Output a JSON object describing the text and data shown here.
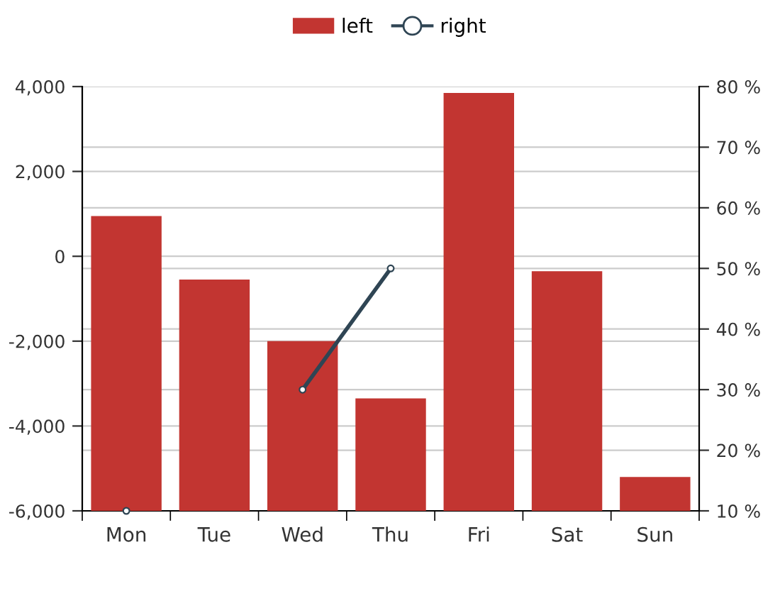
{
  "chart_data": {
    "type": "bar",
    "categories": [
      "Mon",
      "Tue",
      "Wed",
      "Thu",
      "Fri",
      "Sat",
      "Sun"
    ],
    "series": [
      {
        "name": "left",
        "color": "#c23531",
        "base": [
          -6000,
          -6000,
          -6000,
          -6000,
          -6000,
          -6000,
          -6000
        ],
        "values": [
          6950,
          5450,
          4000,
          2650,
          9850,
          5650,
          800
        ]
      },
      {
        "name": "right",
        "type": "line",
        "axis": "y2",
        "color": "#2f4554",
        "marker": "circle",
        "values": [
          10,
          null,
          30,
          50,
          null,
          null,
          null
        ]
      }
    ],
    "ylim": [
      -6000,
      4000
    ],
    "yticks": [
      {
        "value": -6000,
        "label": "-6,000"
      },
      {
        "value": -4000,
        "label": "-4,000"
      },
      {
        "value": -2000,
        "label": "-2,000"
      },
      0,
      {
        "value": 2000,
        "label": "2,000"
      },
      {
        "value": 4000,
        "label": "4,000"
      }
    ],
    "y2lim": [
      10,
      80
    ],
    "y2ticks": [
      {
        "value": 10,
        "label": "10 %"
      },
      {
        "value": 20,
        "label": "20 %"
      },
      {
        "value": 30,
        "label": "30 %"
      },
      {
        "value": 40,
        "label": "40 %"
      },
      {
        "value": 50,
        "label": "50 %"
      },
      {
        "value": 60,
        "label": "60 %"
      },
      {
        "value": 70,
        "label": "70 %"
      },
      {
        "value": 80,
        "label": "80 %"
      }
    ],
    "grid": "y",
    "legend": "top"
  }
}
